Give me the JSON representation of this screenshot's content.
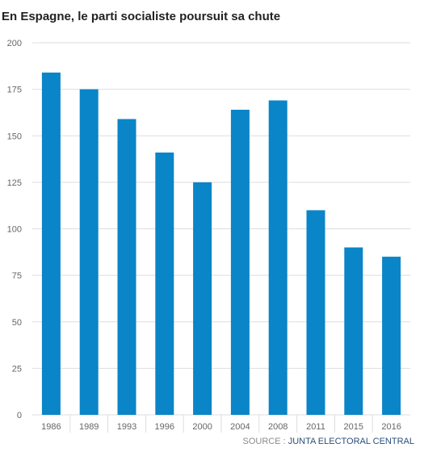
{
  "title": "En Espagne, le parti socialiste poursuit sa chute",
  "source": {
    "label": "SOURCE : ",
    "name": "JUNTA ELECTORAL CENTRAL"
  },
  "colors": {
    "bar": "#0a85c7",
    "grid": "#dddddd",
    "axis_text": "#666666"
  },
  "chart_data": {
    "type": "bar",
    "title": "En Espagne, le parti socialiste poursuit sa chute",
    "xlabel": "",
    "ylabel": "",
    "categories": [
      "1986",
      "1989",
      "1993",
      "1996",
      "2000",
      "2004",
      "2008",
      "2011",
      "2015",
      "2016"
    ],
    "values": [
      184,
      175,
      159,
      141,
      125,
      164,
      169,
      110,
      90,
      85
    ],
    "ylim": [
      0,
      200
    ],
    "yticks": [
      0,
      25,
      50,
      75,
      100,
      125,
      150,
      175,
      200
    ],
    "grid": true,
    "legend": "none"
  }
}
